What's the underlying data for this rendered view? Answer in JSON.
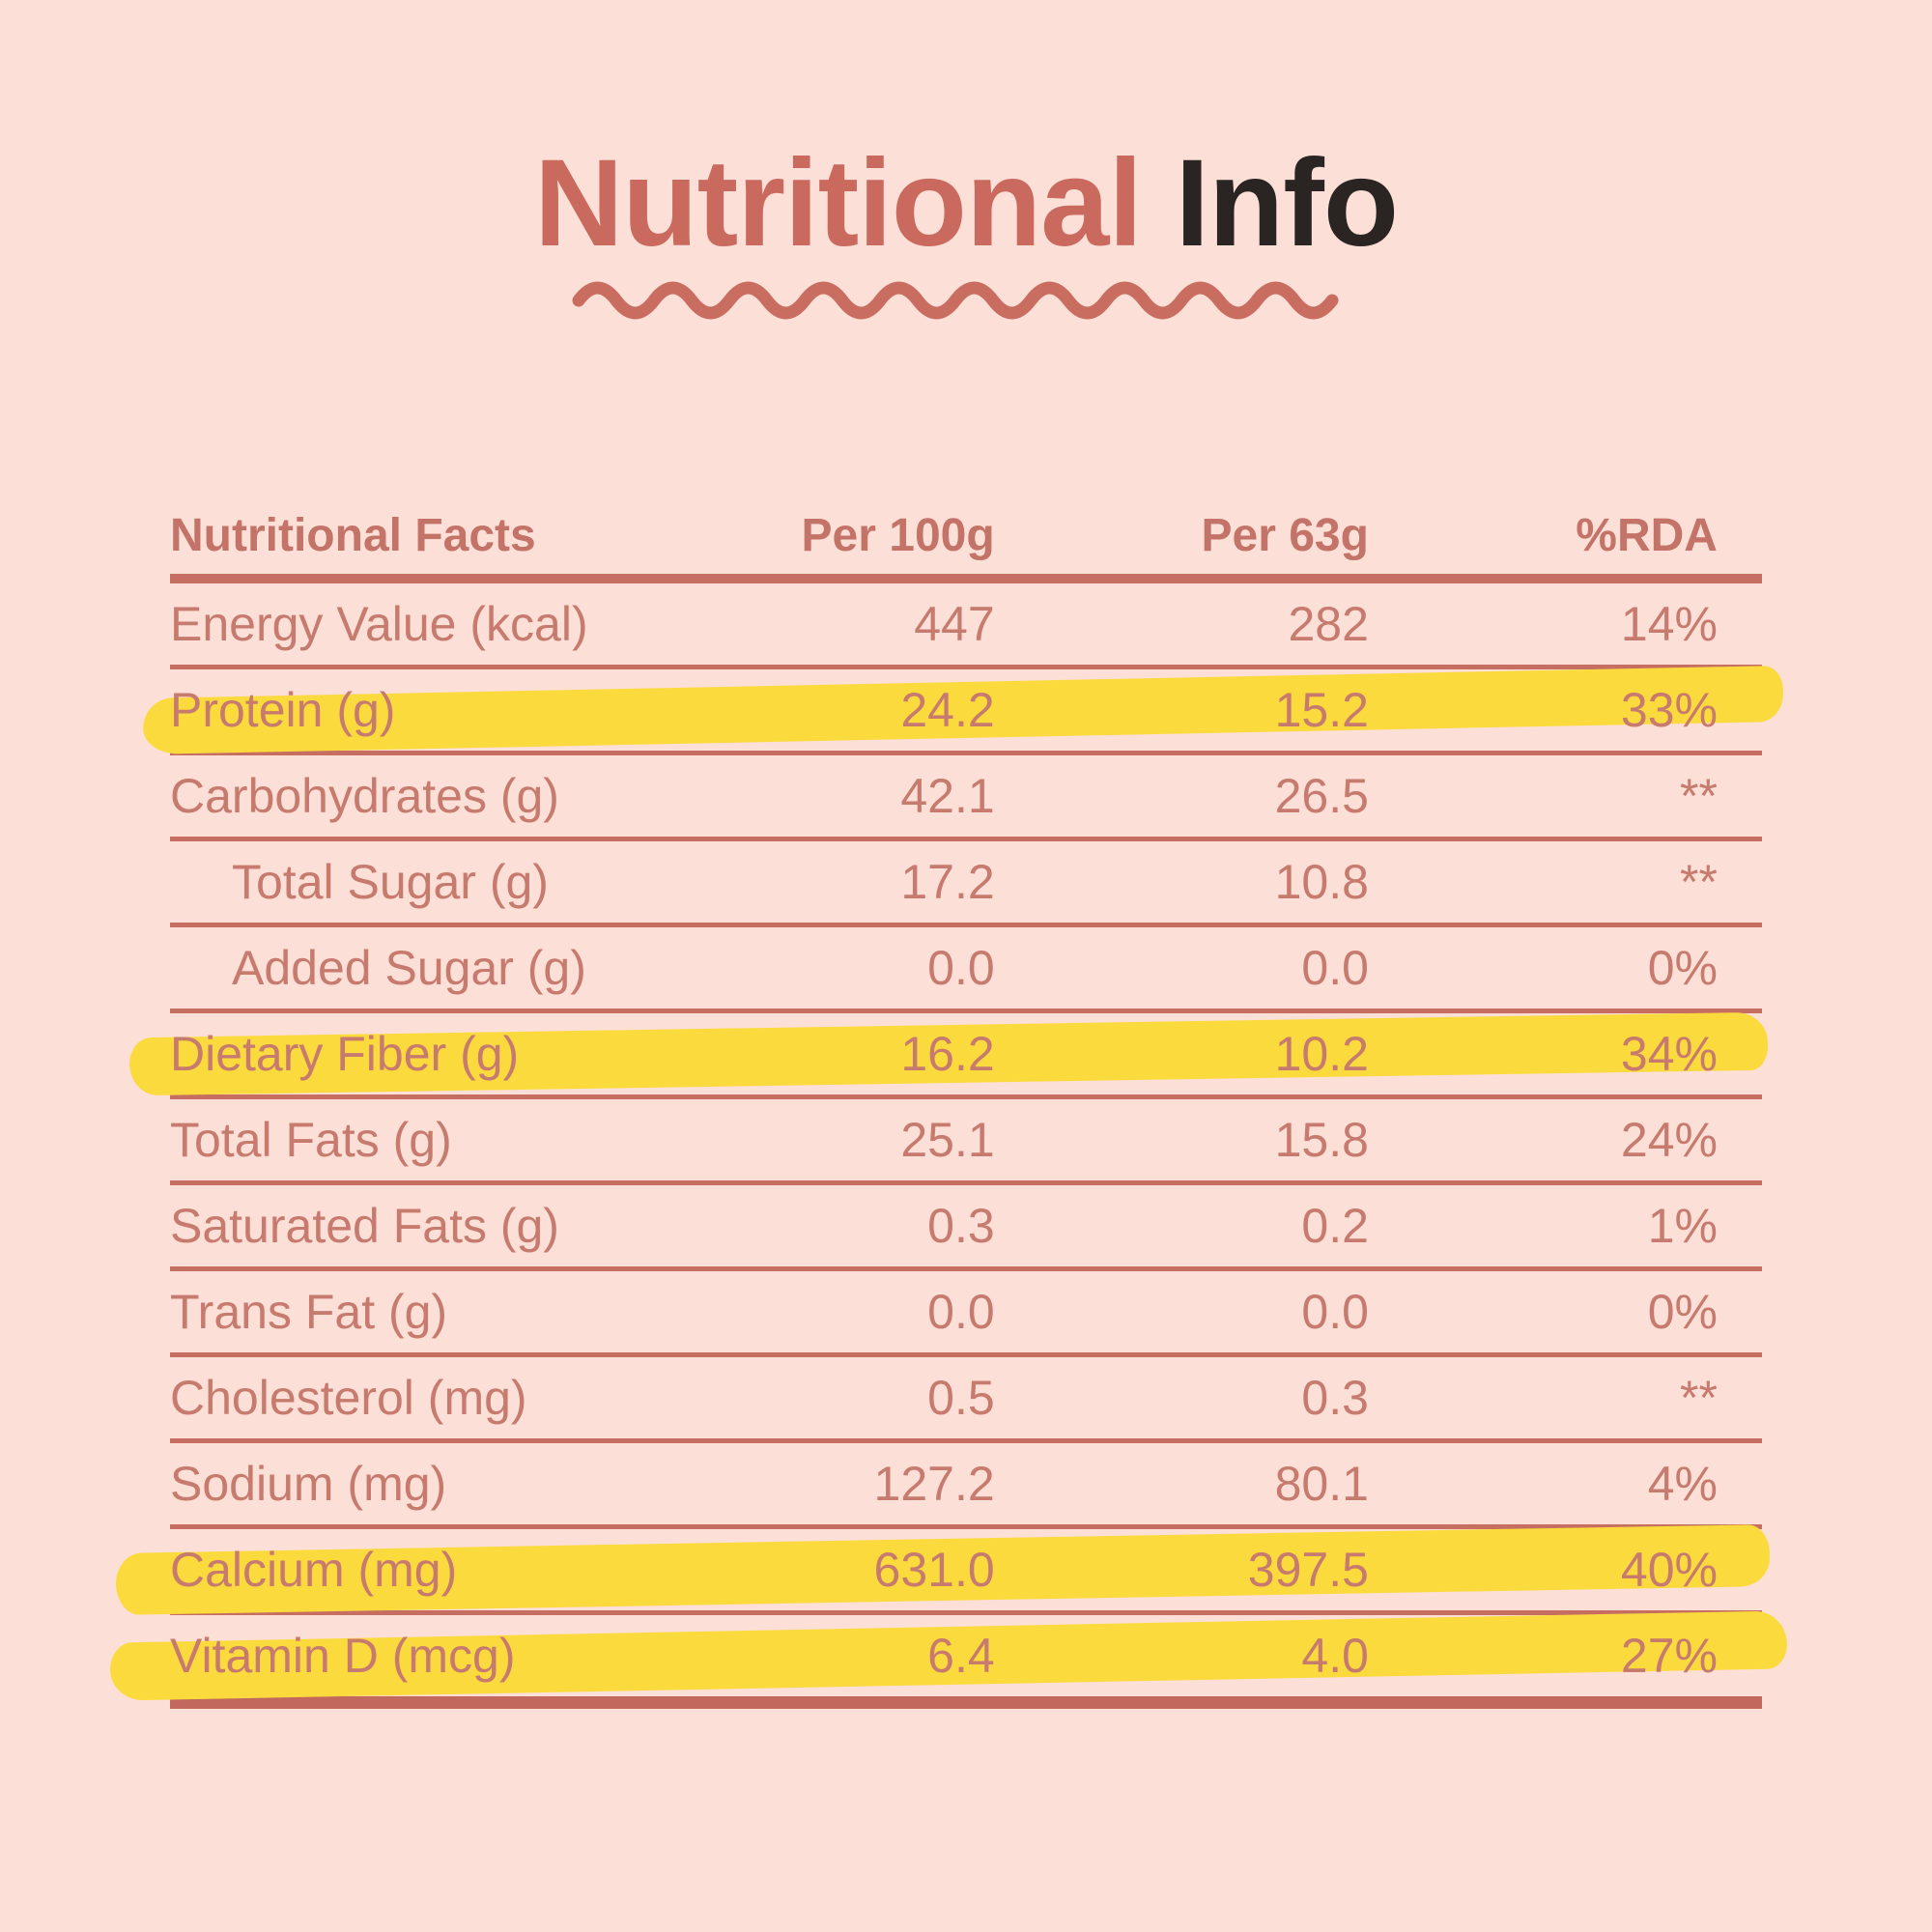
{
  "title": {
    "accent": "Nutritional",
    "dark": "Info"
  },
  "colors": {
    "background": "#fcdfd6",
    "title_accent": "#ca6a5e",
    "title_dark": "#2a2522",
    "table_text": "#c77a6e",
    "rule_line": "#c76e62",
    "highlight_yellow": "#fbda3d"
  },
  "table": {
    "headers": [
      "Nutritional Facts",
      "Per 100g",
      "Per 63g",
      "%RDA"
    ],
    "rows": [
      {
        "label": "Energy Value (kcal)",
        "per100g": "447",
        "per63g": "282",
        "rda": "14%",
        "indent": false,
        "highlight": false
      },
      {
        "label": "Protein (g)",
        "per100g": "24.2",
        "per63g": "15.2",
        "rda": "33%",
        "indent": false,
        "highlight": true
      },
      {
        "label": "Carbohydrates (g)",
        "per100g": "42.1",
        "per63g": "26.5",
        "rda": "**",
        "indent": false,
        "highlight": false
      },
      {
        "label": "Total Sugar (g)",
        "per100g": "17.2",
        "per63g": "10.8",
        "rda": "**",
        "indent": true,
        "highlight": false
      },
      {
        "label": "Added Sugar (g)",
        "per100g": "0.0",
        "per63g": "0.0",
        "rda": "0%",
        "indent": true,
        "highlight": false
      },
      {
        "label": "Dietary Fiber (g)",
        "per100g": "16.2",
        "per63g": "10.2",
        "rda": "34%",
        "indent": false,
        "highlight": true
      },
      {
        "label": "Total Fats (g)",
        "per100g": "25.1",
        "per63g": "15.8",
        "rda": "24%",
        "indent": false,
        "highlight": false
      },
      {
        "label": "Saturated Fats (g)",
        "per100g": "0.3",
        "per63g": "0.2",
        "rda": "1%",
        "indent": false,
        "highlight": false
      },
      {
        "label": "Trans Fat (g)",
        "per100g": "0.0",
        "per63g": "0.0",
        "rda": "0%",
        "indent": false,
        "highlight": false
      },
      {
        "label": "Cholesterol (mg)",
        "per100g": "0.5",
        "per63g": "0.3",
        "rda": "**",
        "indent": false,
        "highlight": false
      },
      {
        "label": "Sodium (mg)",
        "per100g": "127.2",
        "per63g": "80.1",
        "rda": "4%",
        "indent": false,
        "highlight": false
      },
      {
        "label": "Calcium (mg)",
        "per100g": "631.0",
        "per63g": "397.5",
        "rda": "40%",
        "indent": false,
        "highlight": true
      },
      {
        "label": "Vitamin D (mcg)",
        "per100g": "6.4",
        "per63g": "4.0",
        "rda": "27%",
        "indent": false,
        "highlight": true
      }
    ]
  }
}
